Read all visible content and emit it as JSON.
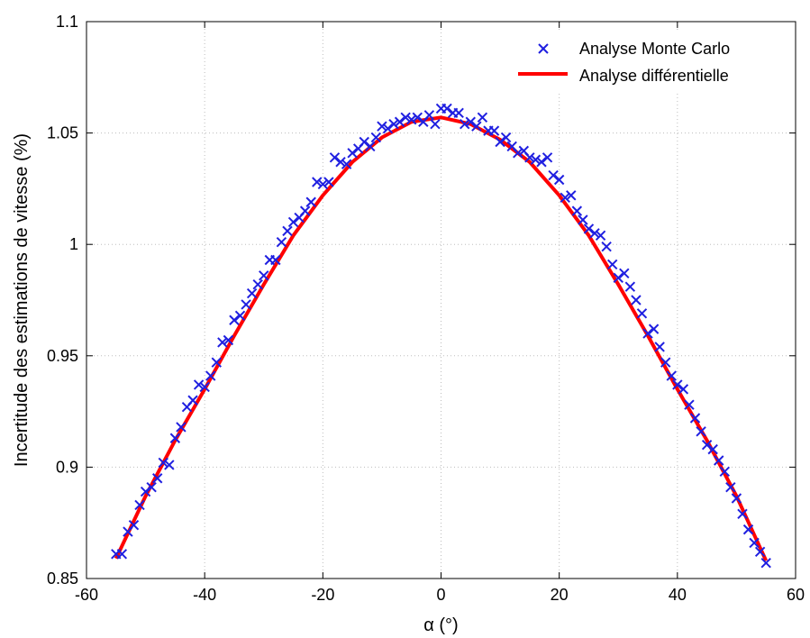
{
  "chart_data": {
    "type": "line",
    "title": "",
    "xlabel": "α (°)",
    "ylabel": "Incertitude des estimations de vitesse (%)",
    "xlim": [
      -60,
      60
    ],
    "ylim": [
      0.85,
      1.1
    ],
    "xticks": [
      -60,
      -40,
      -20,
      0,
      20,
      40,
      60
    ],
    "xtick_labels": [
      "-60",
      "-40",
      "-20",
      "0",
      "20",
      "40",
      "60"
    ],
    "yticks": [
      0.85,
      0.9,
      0.95,
      1.0,
      1.05,
      1.1
    ],
    "ytick_labels": [
      "0.85",
      "0.9",
      "0.95",
      "1",
      "1.05",
      "1.1"
    ],
    "grid": true,
    "legend_position": "top-right",
    "series": [
      {
        "name": "Analyse Monte Carlo",
        "type": "scatter",
        "marker": "x",
        "color": "#1f1fe0",
        "x": [
          -55,
          -54,
          -53,
          -52,
          -51,
          -50,
          -49,
          -48,
          -47,
          -46,
          -45,
          -44,
          -43,
          -42,
          -41,
          -40,
          -39,
          -38,
          -37,
          -36,
          -35,
          -34,
          -33,
          -32,
          -31,
          -30,
          -29,
          -28,
          -27,
          -26,
          -25,
          -24,
          -23,
          -22,
          -21,
          -20,
          -19,
          -18,
          -17,
          -16,
          -15,
          -14,
          -13,
          -12,
          -11,
          -10,
          -9,
          -8,
          -7,
          -6,
          -5,
          -4,
          -3,
          -2,
          -1,
          0,
          1,
          2,
          3,
          4,
          5,
          6,
          7,
          8,
          9,
          10,
          11,
          12,
          13,
          14,
          15,
          16,
          17,
          18,
          19,
          20,
          21,
          22,
          23,
          24,
          25,
          26,
          27,
          28,
          29,
          30,
          31,
          32,
          33,
          34,
          35,
          36,
          37,
          38,
          39,
          40,
          41,
          42,
          43,
          44,
          45,
          46,
          47,
          48,
          49,
          50,
          51,
          52,
          53,
          54,
          55
        ],
        "y": [
          0.861,
          0.861,
          0.871,
          0.874,
          0.883,
          0.889,
          0.891,
          0.895,
          0.902,
          0.901,
          0.913,
          0.918,
          0.927,
          0.93,
          0.937,
          0.936,
          0.941,
          0.947,
          0.956,
          0.957,
          0.966,
          0.968,
          0.973,
          0.978,
          0.982,
          0.986,
          0.993,
          0.993,
          1.001,
          1.006,
          1.01,
          1.012,
          1.015,
          1.019,
          1.028,
          1.027,
          1.028,
          1.039,
          1.037,
          1.036,
          1.041,
          1.043,
          1.046,
          1.044,
          1.048,
          1.053,
          1.052,
          1.054,
          1.055,
          1.057,
          1.056,
          1.057,
          1.055,
          1.058,
          1.054,
          1.061,
          1.061,
          1.059,
          1.059,
          1.054,
          1.055,
          1.053,
          1.057,
          1.051,
          1.051,
          1.046,
          1.048,
          1.044,
          1.041,
          1.042,
          1.039,
          1.038,
          1.037,
          1.039,
          1.031,
          1.029,
          1.021,
          1.022,
          1.015,
          1.011,
          1.007,
          1.005,
          1.004,
          0.999,
          0.991,
          0.985,
          0.987,
          0.981,
          0.975,
          0.969,
          0.96,
          0.962,
          0.954,
          0.947,
          0.941,
          0.937,
          0.935,
          0.928,
          0.922,
          0.916,
          0.91,
          0.908,
          0.903,
          0.898,
          0.891,
          0.886,
          0.879,
          0.872,
          0.866,
          0.862,
          0.857
        ]
      },
      {
        "name": "Analyse différentielle",
        "type": "line",
        "color": "#ff0000",
        "x": [
          -55,
          -50,
          -45,
          -40,
          -35,
          -30,
          -25,
          -20,
          -15,
          -10,
          -5,
          0,
          5,
          10,
          15,
          20,
          25,
          30,
          35,
          40,
          45,
          50,
          55
        ],
        "y": [
          0.859,
          0.887,
          0.912,
          0.935,
          0.959,
          0.982,
          1.004,
          1.022,
          1.037,
          1.048,
          1.055,
          1.057,
          1.054,
          1.047,
          1.037,
          1.022,
          1.004,
          0.982,
          0.959,
          0.935,
          0.912,
          0.887,
          0.858
        ]
      }
    ]
  }
}
